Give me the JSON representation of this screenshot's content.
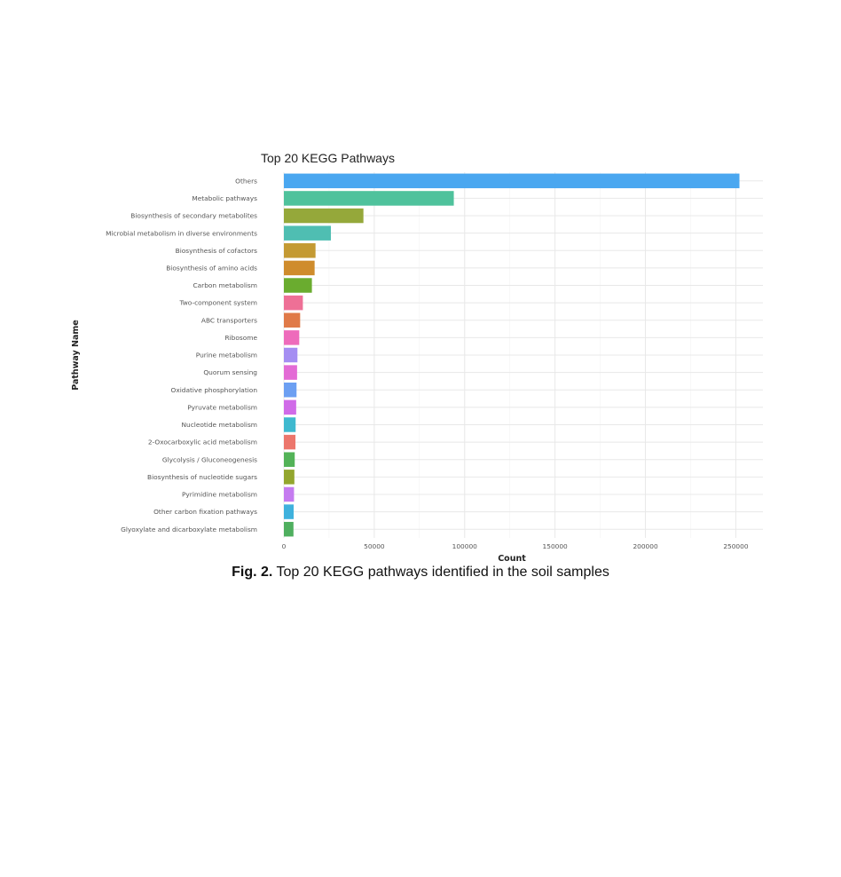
{
  "chart_data": {
    "type": "bar",
    "orientation": "horizontal",
    "title": "Top 20 KEGG Pathways",
    "xlabel": "Count",
    "ylabel": "Pathway Name",
    "xlim": [
      0,
      265000
    ],
    "xticks": [
      "0",
      "50000",
      "100000",
      "150000",
      "200000",
      "250000"
    ],
    "grid": true,
    "legend": "none",
    "bars": [
      {
        "category": "Others",
        "value": 252000,
        "color": "#4aa7f0"
      },
      {
        "category": "Metabolic pathways",
        "value": 94000,
        "color": "#4fc29c"
      },
      {
        "category": "Biosynthesis of secondary metabolites",
        "value": 44000,
        "color": "#95a83a"
      },
      {
        "category": "Microbial metabolism in diverse environments",
        "value": 26000,
        "color": "#4fbeb2"
      },
      {
        "category": "Biosynthesis of cofactors",
        "value": 17500,
        "color": "#c49a33"
      },
      {
        "category": "Biosynthesis of amino acids",
        "value": 17000,
        "color": "#cf8c2c"
      },
      {
        "category": "Carbon metabolism",
        "value": 15500,
        "color": "#6aac2f"
      },
      {
        "category": "Two-component system",
        "value": 10500,
        "color": "#ee7096"
      },
      {
        "category": "ABC transporters",
        "value": 9000,
        "color": "#e07a48"
      },
      {
        "category": "Ribosome",
        "value": 8500,
        "color": "#ee6bbb"
      },
      {
        "category": "Purine metabolism",
        "value": 7500,
        "color": "#a58ef2"
      },
      {
        "category": "Quorum sensing",
        "value": 7300,
        "color": "#e36bd5"
      },
      {
        "category": "Oxidative phosphorylation",
        "value": 7000,
        "color": "#6c9ff2"
      },
      {
        "category": "Pyruvate metabolism",
        "value": 6800,
        "color": "#d06be8"
      },
      {
        "category": "Nucleotide metabolism",
        "value": 6500,
        "color": "#3fb9cf"
      },
      {
        "category": "2-Oxocarboxylic acid metabolism",
        "value": 6400,
        "color": "#ec766c"
      },
      {
        "category": "Glycolysis / Gluconeogenesis",
        "value": 6000,
        "color": "#53b358"
      },
      {
        "category": "Biosynthesis of nucleotide sugars",
        "value": 5800,
        "color": "#93a62e"
      },
      {
        "category": "Pyrimidine metabolism",
        "value": 5600,
        "color": "#c57bf0"
      },
      {
        "category": "Other carbon fixation pathways",
        "value": 5400,
        "color": "#3fb1dd"
      },
      {
        "category": "Glyoxylate and dicarboxylate metabolism",
        "value": 5300,
        "color": "#4faf5f"
      }
    ]
  },
  "caption": {
    "label": "Fig. 2.",
    "text": " Top 20 KEGG pathways identified in the soil samples"
  }
}
